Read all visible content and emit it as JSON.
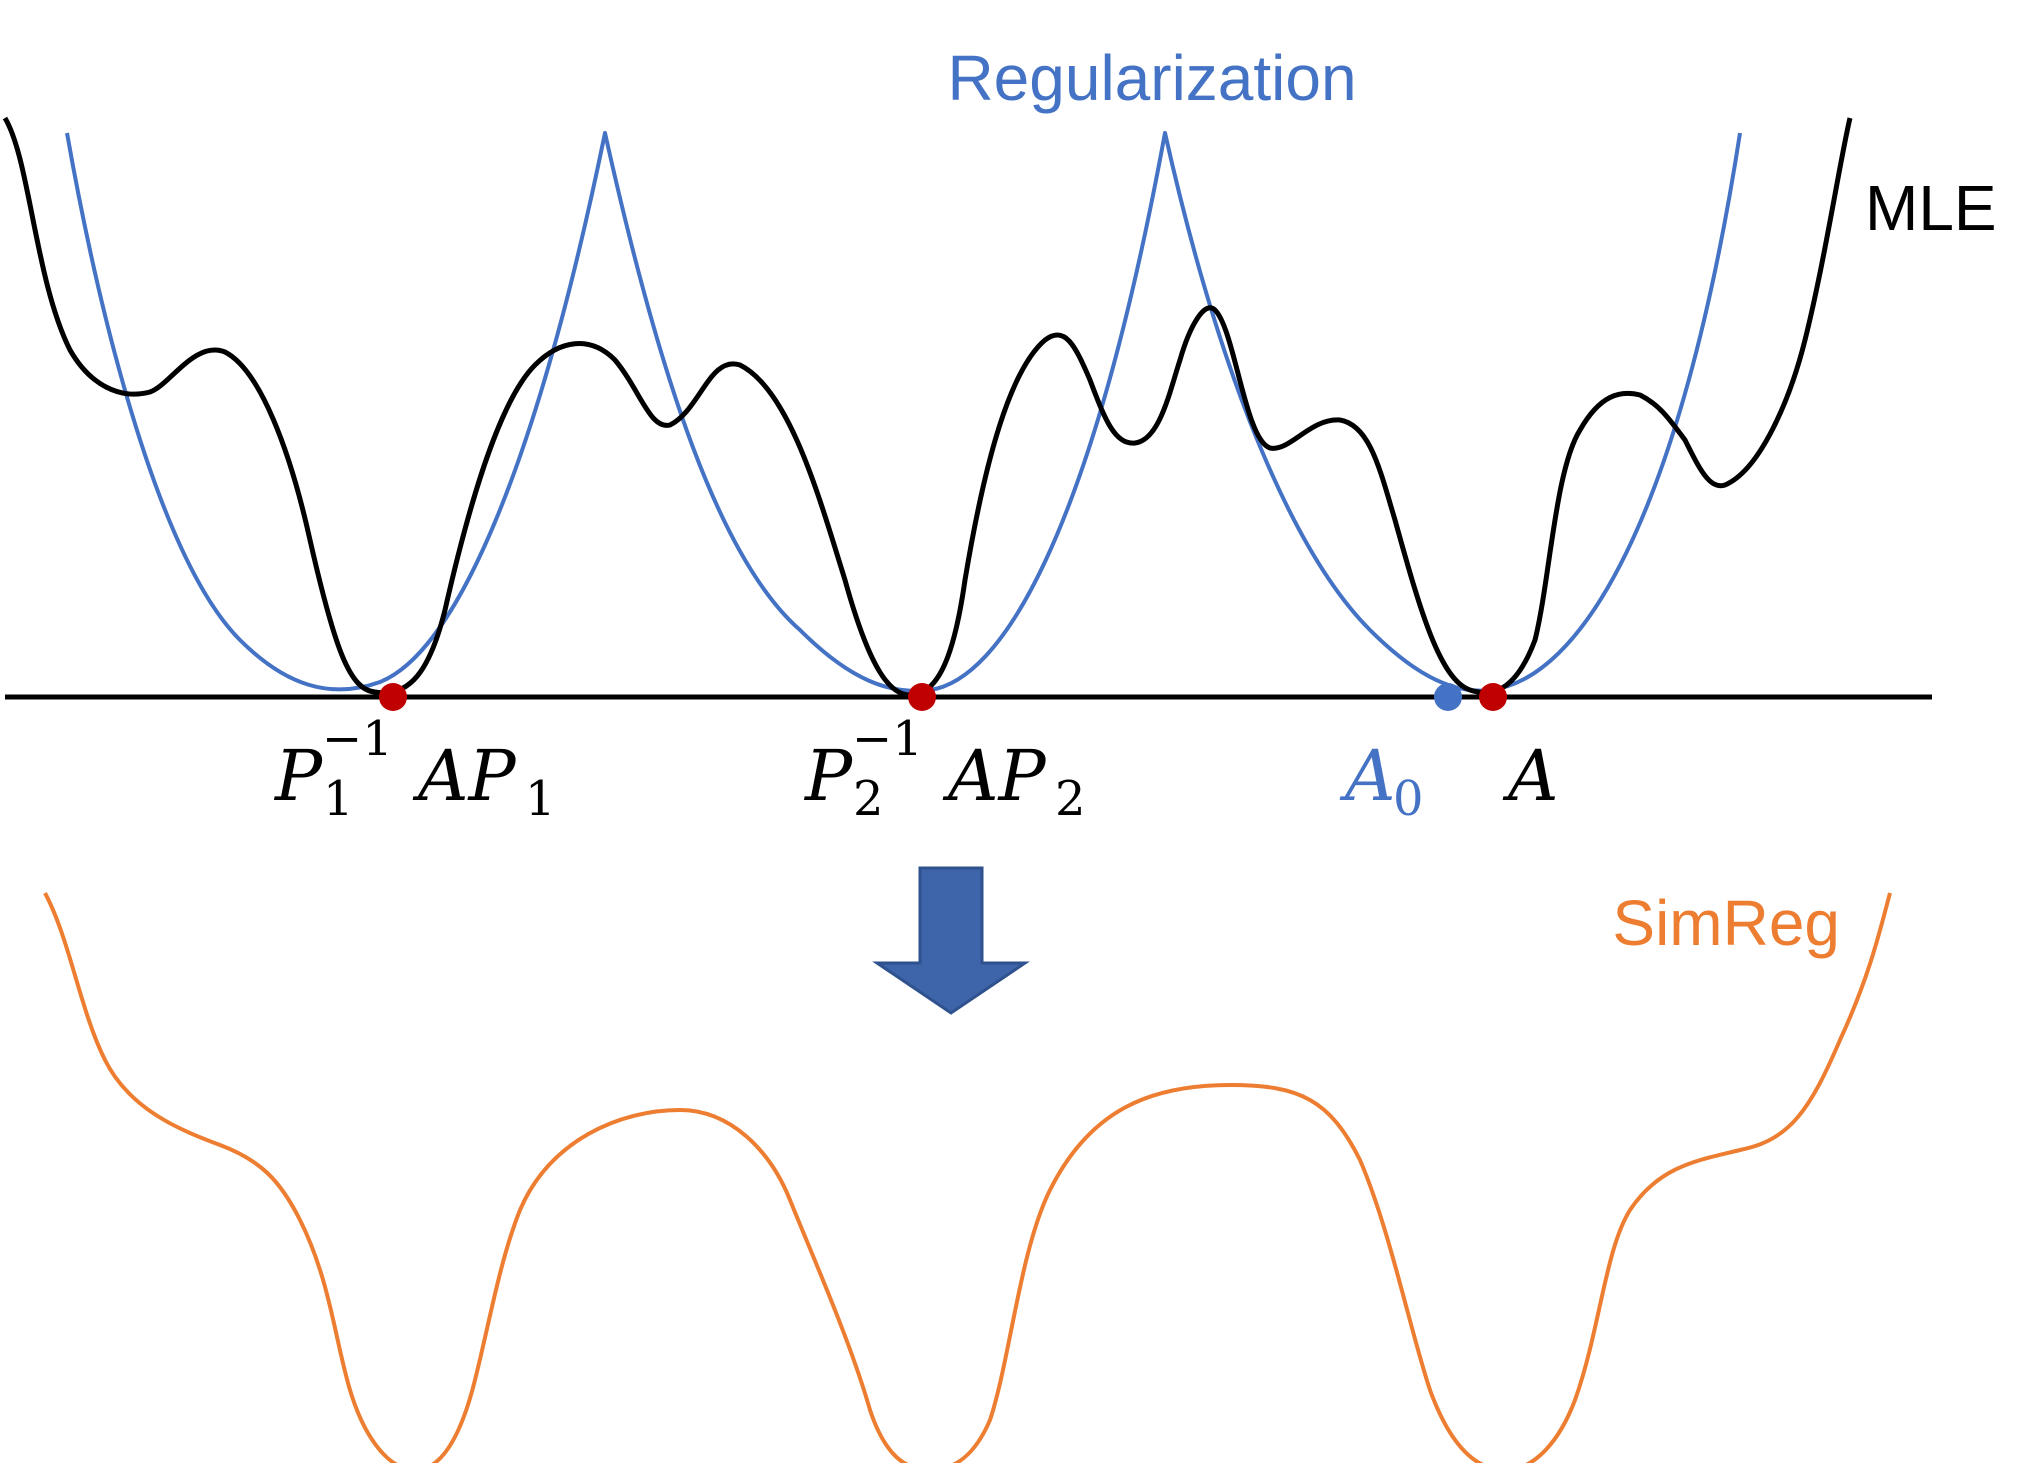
{
  "labels": {
    "regularization": "Regularization",
    "mle": "MLE",
    "simreg": "SimReg"
  },
  "points": {
    "p1": {
      "base": "P",
      "sub_left": "1",
      "sup": "−1",
      "mid": "AP",
      "sub_right": "1"
    },
    "p2": {
      "base": "P",
      "sub_left": "2",
      "sup": "−1",
      "mid": "AP",
      "sub_right": "2"
    },
    "a0": {
      "base": "A",
      "sub": "0"
    },
    "a": {
      "base": "A"
    }
  },
  "colors": {
    "mle": "#000000",
    "regularization": "#4472c4",
    "simreg": "#ed7d31",
    "arrow": "#3e64aa",
    "point_red": "#c00000",
    "point_blue": "#4472c4"
  }
}
